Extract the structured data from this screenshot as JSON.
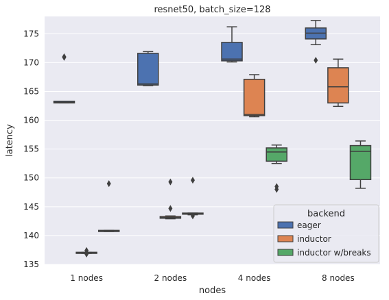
{
  "chart_data": {
    "type": "box",
    "title": "resnet50, batch_size=128",
    "xlabel": "nodes",
    "ylabel": "latency",
    "categories": [
      "1 nodes",
      "2 nodes",
      "4 nodes",
      "8 nodes"
    ],
    "ylim": [
      135,
      178
    ],
    "yticks": [
      135,
      140,
      145,
      150,
      155,
      160,
      165,
      170,
      175
    ],
    "grid": true,
    "legend": {
      "title": "backend",
      "placement": "bottom-right"
    },
    "series": [
      {
        "name": "eager",
        "color": "#4c72b0",
        "boxes": [
          {
            "category": "1 nodes",
            "whislo": 163.0,
            "q1": 163.0,
            "med": 163.1,
            "q3": 163.3,
            "whishi": 163.3,
            "fliers": [
              170.9,
              171.0
            ]
          },
          {
            "category": "2 nodes",
            "whislo": 166.0,
            "q1": 166.1,
            "med": 166.3,
            "q3": 171.6,
            "whishi": 171.9,
            "fliers": []
          },
          {
            "category": "4 nodes",
            "whislo": 170.1,
            "q1": 170.3,
            "med": 170.6,
            "q3": 173.5,
            "whishi": 176.2,
            "fliers": []
          },
          {
            "category": "8 nodes",
            "whislo": 173.1,
            "q1": 174.1,
            "med": 175.1,
            "q3": 176.0,
            "whishi": 177.3,
            "fliers": [
              170.4
            ]
          }
        ]
      },
      {
        "name": "inductor",
        "color": "#dd8452",
        "boxes": [
          {
            "category": "1 nodes",
            "whislo": 136.9,
            "q1": 136.9,
            "med": 137.0,
            "q3": 137.1,
            "whishi": 137.1,
            "fliers": [
              137.4,
              136.8
            ]
          },
          {
            "category": "2 nodes",
            "whislo": 142.9,
            "q1": 143.0,
            "med": 143.1,
            "q3": 143.3,
            "whishi": 143.4,
            "fliers": [
              149.3,
              144.7
            ]
          },
          {
            "category": "4 nodes",
            "whislo": 160.6,
            "q1": 160.8,
            "med": 161.0,
            "q3": 167.1,
            "whishi": 167.9,
            "fliers": []
          },
          {
            "category": "8 nodes",
            "whislo": 162.4,
            "q1": 163.0,
            "med": 165.8,
            "q3": 169.1,
            "whishi": 170.6,
            "fliers": []
          }
        ]
      },
      {
        "name": "inductor w/breaks",
        "color": "#55a868",
        "boxes": [
          {
            "category": "1 nodes",
            "whislo": 140.7,
            "q1": 140.7,
            "med": 140.8,
            "q3": 140.9,
            "whishi": 140.9,
            "fliers": [
              149.0
            ]
          },
          {
            "category": "2 nodes",
            "whislo": 143.6,
            "q1": 143.7,
            "med": 143.8,
            "q3": 143.9,
            "whishi": 143.9,
            "fliers": [
              149.6,
              143.4
            ]
          },
          {
            "category": "4 nodes",
            "whislo": 152.5,
            "q1": 152.9,
            "med": 154.5,
            "q3": 155.2,
            "whishi": 155.7,
            "fliers": [
              148.5,
              148.0
            ]
          },
          {
            "category": "8 nodes",
            "whislo": 148.2,
            "q1": 149.7,
            "med": 154.6,
            "q3": 155.6,
            "whishi": 156.4,
            "fliers": []
          }
        ]
      }
    ]
  }
}
